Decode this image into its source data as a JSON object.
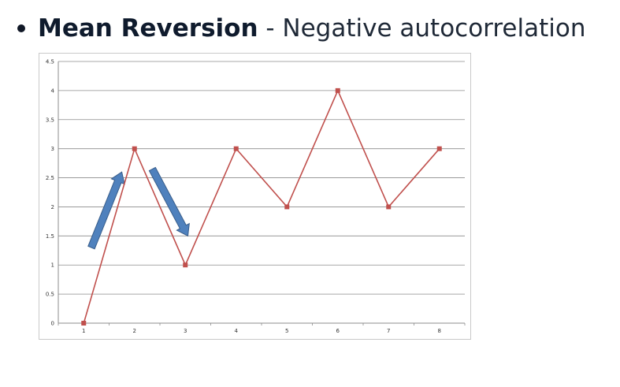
{
  "slide": {
    "bold_term": "Mean Reversion",
    "separator": " - ",
    "description": "Negative autocorrelation"
  },
  "chart_data": {
    "type": "line",
    "x": [
      1,
      2,
      3,
      4,
      5,
      6,
      7,
      8
    ],
    "series": [
      {
        "values": [
          0,
          3,
          1,
          3,
          2,
          4,
          2,
          3
        ],
        "color": "#c0504d"
      }
    ],
    "xlim": [
      0.5,
      8.5
    ],
    "ylim": [
      0,
      4.5
    ],
    "y_ticks": [
      "0",
      "0.5",
      "1",
      "1.5",
      "2",
      "2.5",
      "3",
      "3.5",
      "4",
      "4.5"
    ],
    "x_ticks": [
      "1",
      "2",
      "3",
      "4",
      "5",
      "6",
      "7",
      "8"
    ],
    "grid": true,
    "arrow_color": "#4f81bd",
    "annotations": [
      {
        "type": "arrow",
        "direction": "up",
        "from": [
          1.15,
          1.3
        ],
        "to": [
          1.75,
          2.6
        ]
      },
      {
        "type": "arrow",
        "direction": "down",
        "from": [
          2.35,
          2.65
        ],
        "to": [
          3.05,
          1.5
        ]
      }
    ]
  }
}
